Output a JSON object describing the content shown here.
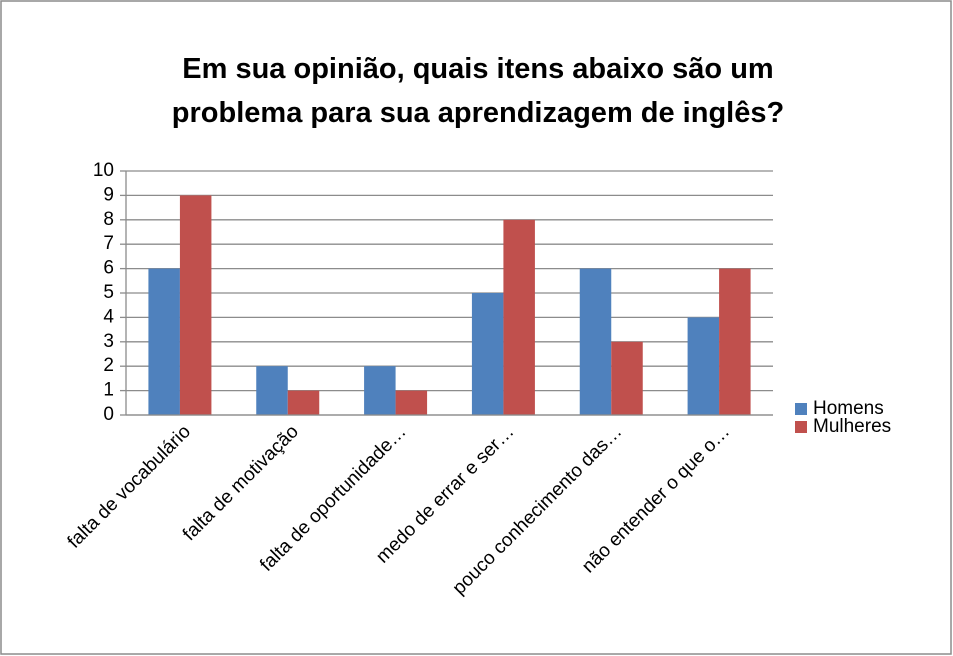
{
  "chart_data": {
    "type": "bar",
    "title": [
      "Em sua opinião, quais itens abaixo são um",
      "problema para sua aprendizagem de inglês?"
    ],
    "categories": [
      "falta de vocabulário",
      "falta de motivação",
      "falta de oportunidade…",
      "medo de errar e ser…",
      "pouco conhecimento das…",
      "não entender o que o…"
    ],
    "series": [
      {
        "name": "Homens",
        "color": "#4f81bd",
        "values": [
          6,
          2,
          2,
          5,
          6,
          4
        ]
      },
      {
        "name": "Mulheres",
        "color": "#c0504d",
        "values": [
          9,
          1,
          1,
          8,
          3,
          6
        ]
      }
    ],
    "ylim": [
      0,
      10
    ],
    "yticks": [
      0,
      1,
      2,
      3,
      4,
      5,
      6,
      7,
      8,
      9,
      10
    ],
    "grid": true,
    "legend": "right"
  }
}
